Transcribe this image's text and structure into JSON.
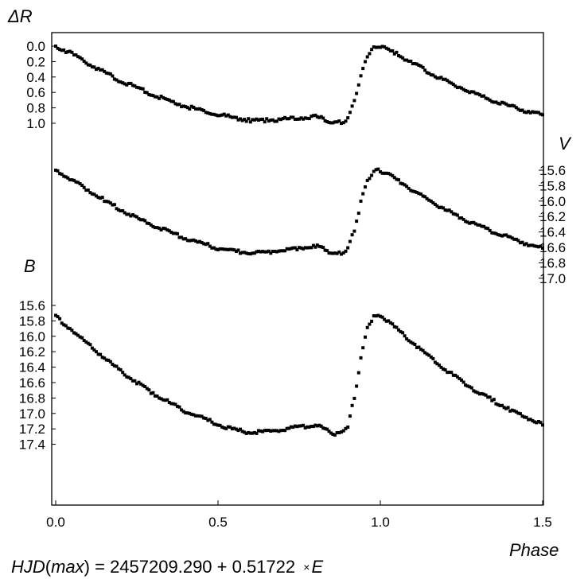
{
  "chart_data": {
    "type": "scatter",
    "xlabel": "Phase",
    "xlim": [
      0.0,
      1.5
    ],
    "x_ticks": [
      "0.0",
      "0.5",
      "1.0",
      "1.5"
    ],
    "grid": false,
    "panels": [
      {
        "name": "ΔR",
        "label": "ΔR",
        "label_side": "left",
        "axis_side": "left",
        "ticks": [
          "0.0",
          "0.2",
          "0.4",
          "0.6",
          "0.8",
          "1.0"
        ],
        "points": [
          [
            0.0,
            0.0
          ],
          [
            0.05,
            0.1
          ],
          [
            0.1,
            0.22
          ],
          [
            0.15,
            0.34
          ],
          [
            0.2,
            0.45
          ],
          [
            0.25,
            0.54
          ],
          [
            0.3,
            0.63
          ],
          [
            0.35,
            0.71
          ],
          [
            0.4,
            0.78
          ],
          [
            0.45,
            0.84
          ],
          [
            0.5,
            0.89
          ],
          [
            0.55,
            0.93
          ],
          [
            0.6,
            0.96
          ],
          [
            0.65,
            0.96
          ],
          [
            0.7,
            0.95
          ],
          [
            0.75,
            0.93
          ],
          [
            0.8,
            0.91
          ],
          [
            0.83,
            0.95
          ],
          [
            0.86,
            0.99
          ],
          [
            0.88,
            0.99
          ],
          [
            0.9,
            0.94
          ],
          [
            0.92,
            0.7
          ],
          [
            0.94,
            0.4
          ],
          [
            0.96,
            0.12
          ],
          [
            0.98,
            0.03
          ],
          [
            1.0,
            0.0
          ],
          [
            1.05,
            0.1
          ],
          [
            1.1,
            0.22
          ],
          [
            1.15,
            0.34
          ],
          [
            1.2,
            0.45
          ],
          [
            1.25,
            0.54
          ],
          [
            1.3,
            0.63
          ],
          [
            1.35,
            0.71
          ],
          [
            1.4,
            0.78
          ],
          [
            1.45,
            0.84
          ],
          [
            1.5,
            0.89
          ]
        ]
      },
      {
        "name": "V",
        "label": "V",
        "label_side": "right",
        "axis_side": "right",
        "ticks": [
          "15.6",
          "15.8",
          "16.0",
          "16.2",
          "16.4",
          "16.6",
          "16.8",
          "17.0"
        ],
        "points": [
          [
            0.0,
            15.6
          ],
          [
            0.05,
            15.72
          ],
          [
            0.1,
            15.86
          ],
          [
            0.15,
            15.99
          ],
          [
            0.2,
            16.11
          ],
          [
            0.25,
            16.22
          ],
          [
            0.3,
            16.31
          ],
          [
            0.35,
            16.4
          ],
          [
            0.4,
            16.48
          ],
          [
            0.45,
            16.55
          ],
          [
            0.5,
            16.61
          ],
          [
            0.55,
            16.65
          ],
          [
            0.6,
            16.67
          ],
          [
            0.65,
            16.66
          ],
          [
            0.7,
            16.63
          ],
          [
            0.75,
            16.61
          ],
          [
            0.8,
            16.58
          ],
          [
            0.83,
            16.63
          ],
          [
            0.86,
            16.69
          ],
          [
            0.88,
            16.68
          ],
          [
            0.9,
            16.62
          ],
          [
            0.92,
            16.37
          ],
          [
            0.94,
            16.02
          ],
          [
            0.96,
            15.72
          ],
          [
            0.98,
            15.62
          ],
          [
            1.0,
            15.6
          ],
          [
            1.05,
            15.72
          ],
          [
            1.1,
            15.86
          ],
          [
            1.15,
            15.99
          ],
          [
            1.2,
            16.11
          ],
          [
            1.25,
            16.22
          ],
          [
            1.3,
            16.31
          ],
          [
            1.35,
            16.4
          ],
          [
            1.4,
            16.48
          ],
          [
            1.45,
            16.55
          ],
          [
            1.5,
            16.61
          ]
        ]
      },
      {
        "name": "B",
        "label": "B",
        "label_side": "left",
        "axis_side": "left",
        "ticks": [
          "15.6",
          "15.8",
          "16.0",
          "16.2",
          "16.4",
          "16.6",
          "16.8",
          "17.0",
          "17.2",
          "17.4"
        ],
        "points": [
          [
            0.0,
            15.74
          ],
          [
            0.05,
            15.92
          ],
          [
            0.1,
            16.1
          ],
          [
            0.15,
            16.28
          ],
          [
            0.2,
            16.45
          ],
          [
            0.25,
            16.6
          ],
          [
            0.3,
            16.74
          ],
          [
            0.35,
            16.86
          ],
          [
            0.4,
            16.97
          ],
          [
            0.45,
            17.06
          ],
          [
            0.5,
            17.14
          ],
          [
            0.55,
            17.21
          ],
          [
            0.6,
            17.25
          ],
          [
            0.65,
            17.24
          ],
          [
            0.7,
            17.2
          ],
          [
            0.75,
            17.18
          ],
          [
            0.8,
            17.15
          ],
          [
            0.83,
            17.2
          ],
          [
            0.86,
            17.26
          ],
          [
            0.88,
            17.25
          ],
          [
            0.9,
            17.16
          ],
          [
            0.92,
            16.8
          ],
          [
            0.94,
            16.3
          ],
          [
            0.96,
            15.88
          ],
          [
            0.98,
            15.75
          ],
          [
            1.0,
            15.72
          ],
          [
            1.05,
            15.9
          ],
          [
            1.1,
            16.08
          ],
          [
            1.15,
            16.26
          ],
          [
            1.2,
            16.43
          ],
          [
            1.25,
            16.58
          ],
          [
            1.3,
            16.72
          ],
          [
            1.35,
            16.84
          ],
          [
            1.4,
            16.95
          ],
          [
            1.45,
            17.05
          ],
          [
            1.5,
            17.15
          ]
        ]
      }
    ],
    "caption": {
      "lhs": "HJD",
      "lhs_arg": "max",
      "rhs_prefix": " = 2457209.290 + 0.51722 ",
      "times": "×",
      "epoch": "E"
    }
  }
}
